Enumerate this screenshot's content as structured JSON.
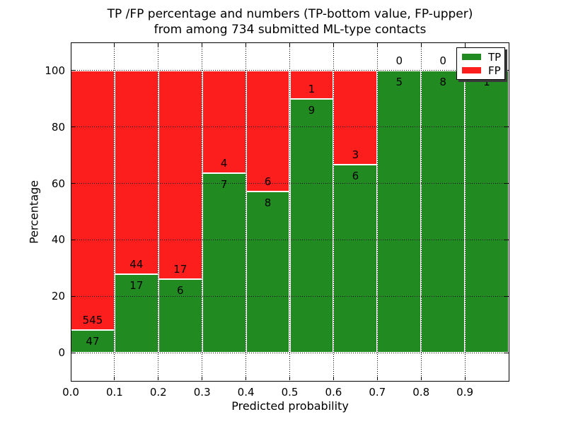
{
  "title": {
    "line1": "TP /FP percentage and numbers (TP-bottom value, FP-upper)",
    "line2": "from among 734 submitted ML-type contacts"
  },
  "axes": {
    "xlabel": "Predicted probability",
    "ylabel": "Percentage",
    "xtick_labels": [
      "0.0",
      "0.1",
      "0.2",
      "0.3",
      "0.4",
      "0.5",
      "0.6",
      "0.7",
      "0.8",
      "0.9"
    ],
    "ytick_labels": [
      "0",
      "20",
      "40",
      "60",
      "80",
      "100"
    ],
    "ytick_values": [
      0,
      20,
      40,
      60,
      80,
      100
    ],
    "ylim": [
      -10,
      110
    ],
    "xlim": [
      0,
      1
    ],
    "grid_style": "dotted"
  },
  "legend": {
    "position": "upper right",
    "items": [
      {
        "label": "TP",
        "color_key": "tp"
      },
      {
        "label": "FP",
        "color_key": "fp"
      }
    ]
  },
  "colors": {
    "tp": "#218a21",
    "fp": "#fc1d1d",
    "bar_edge": "#ffffff",
    "grid": "#000000",
    "background": "#ffffff",
    "text": "#000000"
  },
  "chart_data": {
    "type": "bar",
    "stacked": true,
    "normalized": "each bin stacked to 100%",
    "title": "TP /FP percentage and numbers (TP-bottom value, FP-upper) from among 734 submitted ML-type contacts",
    "xlabel": "Predicted probability",
    "ylabel": "Percentage",
    "bin_edges": [
      0.0,
      0.1,
      0.2,
      0.3,
      0.4,
      0.5,
      0.6,
      0.7,
      0.8,
      0.9,
      1.0
    ],
    "categories": [
      "0.0-0.1",
      "0.1-0.2",
      "0.2-0.3",
      "0.3-0.4",
      "0.4-0.5",
      "0.5-0.6",
      "0.6-0.7",
      "0.7-0.8",
      "0.8-0.9",
      "0.9-1.0"
    ],
    "series": [
      {
        "name": "TP",
        "values": [
          47,
          17,
          6,
          7,
          8,
          9,
          6,
          5,
          8,
          1
        ]
      },
      {
        "name": "FP",
        "values": [
          545,
          44,
          17,
          4,
          6,
          1,
          3,
          0,
          0,
          0
        ]
      }
    ],
    "tp_percentages": [
      7.94,
      27.87,
      26.09,
      63.64,
      57.14,
      90.0,
      66.67,
      100.0,
      100.0,
      100.0
    ],
    "total_contacts": 734,
    "ylim": [
      -10,
      110
    ],
    "legend_entries": [
      "TP",
      "FP"
    ],
    "grid": true
  }
}
